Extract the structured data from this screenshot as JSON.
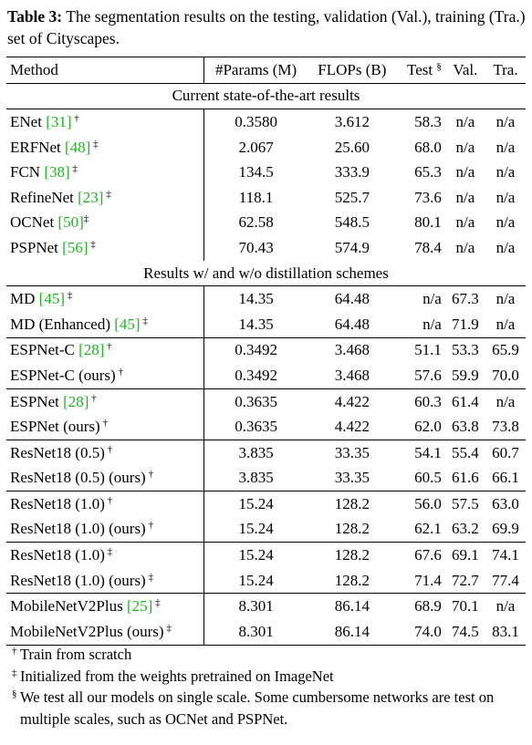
{
  "caption": {
    "label": "Table 3:",
    "text": " The segmentation results on the testing, validation (Val.), training (Tra.) set of Cityscapes."
  },
  "table": {
    "headers": {
      "method": "Method",
      "params": "#Params (M)",
      "flops": "FLOPs (B)",
      "test": "Test",
      "test_mark": "§",
      "val": "Val.",
      "tra": "Tra."
    },
    "section1": "Current state-of-the-art results",
    "section2": "Results w/ and w/o distillation schemes",
    "rows": [
      {
        "name": "ENet ",
        "cite": "[31]",
        "mark": " †",
        "params": "0.3580",
        "flops": "3.612",
        "test": "58.3",
        "val": "n/a",
        "tra": "n/a"
      },
      {
        "name": "ERFNet ",
        "cite": "[48]",
        "mark": " ‡",
        "params": "2.067",
        "flops": "25.60",
        "test": "68.0",
        "val": "n/a",
        "tra": "n/a"
      },
      {
        "name": "FCN ",
        "cite": "[38]",
        "mark": " ‡",
        "params": "134.5",
        "flops": "333.9",
        "test": "65.3",
        "val": "n/a",
        "tra": "n/a"
      },
      {
        "name": "RefineNet ",
        "cite": "[23]",
        "mark": " ‡",
        "params": "118.1",
        "flops": "525.7",
        "test": "73.6",
        "val": "n/a",
        "tra": "n/a"
      },
      {
        "name": "OCNet ",
        "cite": "[50]",
        "mark": "‡",
        "params": "62.58",
        "flops": "548.5",
        "test": "80.1",
        "val": "n/a",
        "tra": "n/a"
      },
      {
        "name": "PSPNet ",
        "cite": "[56]",
        "mark": " ‡",
        "params": "70.43",
        "flops": "574.9",
        "test": "78.4",
        "val": "n/a",
        "tra": "n/a"
      },
      {
        "name": "MD ",
        "cite": "[45]",
        "mark": " ‡",
        "params": "14.35",
        "flops": "64.48",
        "test": "n/a",
        "val": "67.3",
        "tra": "n/a"
      },
      {
        "name": "MD (Enhanced) ",
        "cite": "[45]",
        "mark": " ‡",
        "params": "14.35",
        "flops": "64.48",
        "test": "n/a",
        "val": "71.9",
        "tra": "n/a"
      },
      {
        "name": "ESPNet-C ",
        "cite": "[28]",
        "mark": " †",
        "params": "0.3492",
        "flops": "3.468",
        "test": "51.1",
        "val": "53.3",
        "tra": "65.9"
      },
      {
        "name": "ESPNet-C (ours)",
        "cite": "",
        "mark": " †",
        "params": "0.3492",
        "flops": "3.468",
        "test": "57.6",
        "val": "59.9",
        "tra": "70.0"
      },
      {
        "name": "ESPNet ",
        "cite": "[28]",
        "mark": " †",
        "params": "0.3635",
        "flops": "4.422",
        "test": "60.3",
        "val": "61.4",
        "tra": "n/a"
      },
      {
        "name": "ESPNet (ours)",
        "cite": "",
        "mark": " †",
        "params": "0.3635",
        "flops": "4.422",
        "test": "62.0",
        "val": "63.8",
        "tra": "73.8"
      },
      {
        "name": "ResNet18 (0.5)",
        "cite": "",
        "mark": " †",
        "params": "3.835",
        "flops": "33.35",
        "test": "54.1",
        "val": "55.4",
        "tra": "60.7"
      },
      {
        "name": "ResNet18 (0.5) (ours)",
        "cite": "",
        "mark": " †",
        "params": "3.835",
        "flops": "33.35",
        "test": "60.5",
        "val": "61.6",
        "tra": "66.1"
      },
      {
        "name": "ResNet18 (1.0)",
        "cite": "",
        "mark": " †",
        "params": "15.24",
        "flops": "128.2",
        "test": "56.0",
        "val": "57.5",
        "tra": "63.0"
      },
      {
        "name": "ResNet18 (1.0) (ours)",
        "cite": "",
        "mark": " †",
        "params": "15.24",
        "flops": "128.2",
        "test": "62.1",
        "val": "63.2",
        "tra": "69.9"
      },
      {
        "name": "ResNet18 (1.0)",
        "cite": "",
        "mark": " ‡",
        "params": "15.24",
        "flops": "128.2",
        "test": "67.6",
        "val": "69.1",
        "tra": "74.1"
      },
      {
        "name": "ResNet18 (1.0) (ours)",
        "cite": "",
        "mark": " ‡",
        "params": "15.24",
        "flops": "128.2",
        "test": "71.4",
        "val": "72.7",
        "tra": "77.4"
      },
      {
        "name": "MobileNetV2Plus ",
        "cite": "[25]",
        "mark": " ‡",
        "params": "8.301",
        "flops": "86.14",
        "test": "68.9",
        "val": "70.1",
        "tra": "n/a"
      },
      {
        "name": "MobileNetV2Plus (ours)",
        "cite": "",
        "mark": " ‡",
        "params": "8.301",
        "flops": "86.14",
        "test": "74.0",
        "val": "74.5",
        "tra": "83.1"
      }
    ]
  },
  "footnotes": [
    {
      "mark": "†",
      "text": "Train from scratch"
    },
    {
      "mark": "‡",
      "text": "Initialized from the weights pretrained on ImageNet"
    },
    {
      "mark": "§",
      "text": "We test all our models on single scale. Some cumbersome networks are test on multiple scales, such as OCNet and PSPNet."
    }
  ]
}
